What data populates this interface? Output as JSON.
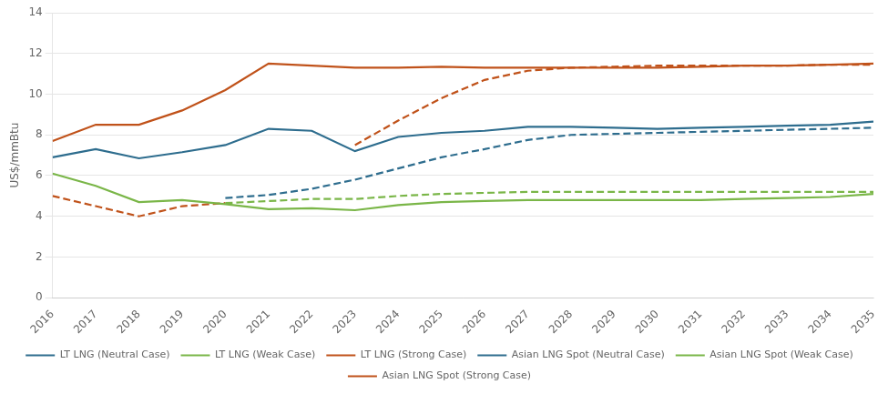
{
  "chart_data": {
    "type": "line",
    "x": [
      2016,
      2017,
      2018,
      2019,
      2020,
      2021,
      2022,
      2023,
      2024,
      2025,
      2026,
      2027,
      2028,
      2029,
      2030,
      2031,
      2032,
      2033,
      2034,
      2035
    ],
    "xlim": [
      2016,
      2035
    ],
    "xticks": [
      2016,
      2017,
      2018,
      2019,
      2020,
      2021,
      2022,
      2023,
      2024,
      2025,
      2026,
      2027,
      2028,
      2029,
      2030,
      2031,
      2032,
      2033,
      2034,
      2035
    ],
    "ylabel": "US$/mmBtu",
    "ylim": [
      0,
      14
    ],
    "yticks": [
      0,
      2,
      4,
      6,
      8,
      10,
      12,
      14
    ],
    "grid": "y",
    "legend": "bottom",
    "series": [
      {
        "name": "LT LNG (Neutral Case)",
        "color": "#2e6d8e",
        "line_style": "solid",
        "values": [
          6.9,
          7.3,
          6.85,
          7.15,
          7.5,
          8.3,
          8.2,
          7.2,
          7.9,
          8.1,
          8.2,
          8.4,
          8.4,
          8.35,
          8.3,
          8.35,
          8.4,
          8.45,
          8.5,
          8.65
        ]
      },
      {
        "name": "LT LNG (Weak Case)",
        "color": "#7ab648",
        "line_style": "solid",
        "values": [
          6.1,
          5.5,
          4.7,
          4.8,
          4.6,
          4.35,
          4.4,
          4.3,
          4.55,
          4.7,
          4.75,
          4.8,
          4.8,
          4.8,
          4.8,
          4.8,
          4.85,
          4.9,
          4.95,
          5.1
        ]
      },
      {
        "name": "LT LNG (Strong Case)",
        "color": "#c0521a",
        "line_style": "solid",
        "values": [
          7.7,
          8.5,
          8.5,
          9.2,
          10.2,
          11.5,
          11.4,
          11.3,
          11.3,
          11.35,
          11.3,
          11.3,
          11.3,
          11.3,
          11.3,
          11.35,
          11.4,
          11.4,
          11.45,
          11.5
        ]
      },
      {
        "name": "Asian LNG Spot (Neutral Case)",
        "color": "#2e6d8e",
        "line_style": "dashed",
        "values": [
          null,
          null,
          null,
          null,
          4.9,
          5.05,
          5.35,
          5.8,
          6.35,
          6.9,
          7.3,
          7.75,
          8.0,
          8.05,
          8.1,
          8.15,
          8.2,
          8.25,
          8.3,
          8.35
        ]
      },
      {
        "name": "Asian LNG Spot (Weak Case)",
        "color": "#7ab648",
        "line_style": "dashed",
        "values": [
          null,
          null,
          null,
          null,
          4.65,
          4.75,
          4.85,
          4.85,
          5.0,
          5.1,
          5.15,
          5.2,
          5.2,
          5.2,
          5.2,
          5.2,
          5.2,
          5.2,
          5.2,
          5.2
        ]
      },
      {
        "name": "Asian LNG Spot (Strong Case)",
        "color": "#c0521a",
        "line_style": "dashed",
        "values": [
          5.0,
          4.5,
          4.0,
          4.5,
          4.65,
          null,
          null,
          7.5,
          8.7,
          9.8,
          10.7,
          11.15,
          11.3,
          11.35,
          11.4,
          11.4,
          11.4,
          11.4,
          11.45,
          11.45
        ]
      }
    ]
  }
}
